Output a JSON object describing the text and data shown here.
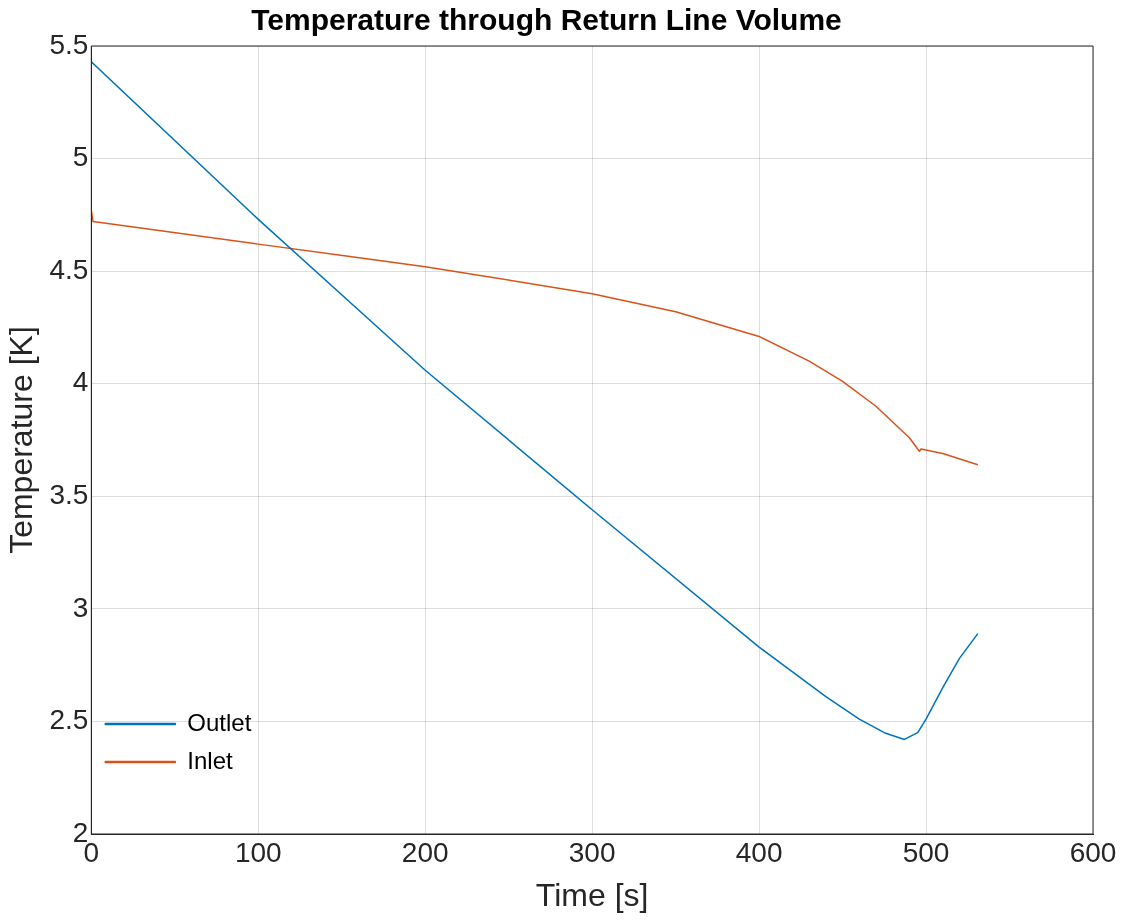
{
  "chart_data": {
    "type": "line",
    "title": "Temperature through Return Line Volume",
    "xlabel": "Time [s]",
    "ylabel": "Temperature [K]",
    "xlim": [
      0,
      600
    ],
    "xticks": [
      0,
      100,
      200,
      300,
      400,
      500,
      600
    ],
    "ylim": [
      2,
      5.5
    ],
    "yticks": [
      2,
      2.5,
      3,
      3.5,
      4,
      4.5,
      5,
      5.5
    ],
    "grid": true,
    "legend": "bottom left",
    "marker": "none",
    "line_style": "solid",
    "series": [
      {
        "name": "Outlet",
        "color": "#0072bd",
        "x": [
          0,
          100,
          200,
          300,
          400,
          420,
          440,
          460,
          475,
          487,
          495,
          500,
          510,
          520,
          531
        ],
        "values": [
          5.43,
          4.73,
          4.06,
          3.44,
          2.83,
          2.72,
          2.61,
          2.51,
          2.45,
          2.42,
          2.45,
          2.51,
          2.65,
          2.78,
          2.89
        ]
      },
      {
        "name": "Inlet",
        "color": "#d95319",
        "x": [
          0,
          1,
          100,
          200,
          300,
          350,
          400,
          430,
          450,
          470,
          490,
          496,
          497,
          510,
          531
        ],
        "values": [
          4.77,
          4.72,
          4.62,
          4.52,
          4.4,
          4.32,
          4.21,
          4.1,
          4.01,
          3.9,
          3.76,
          3.7,
          3.71,
          3.69,
          3.64
        ]
      }
    ]
  }
}
